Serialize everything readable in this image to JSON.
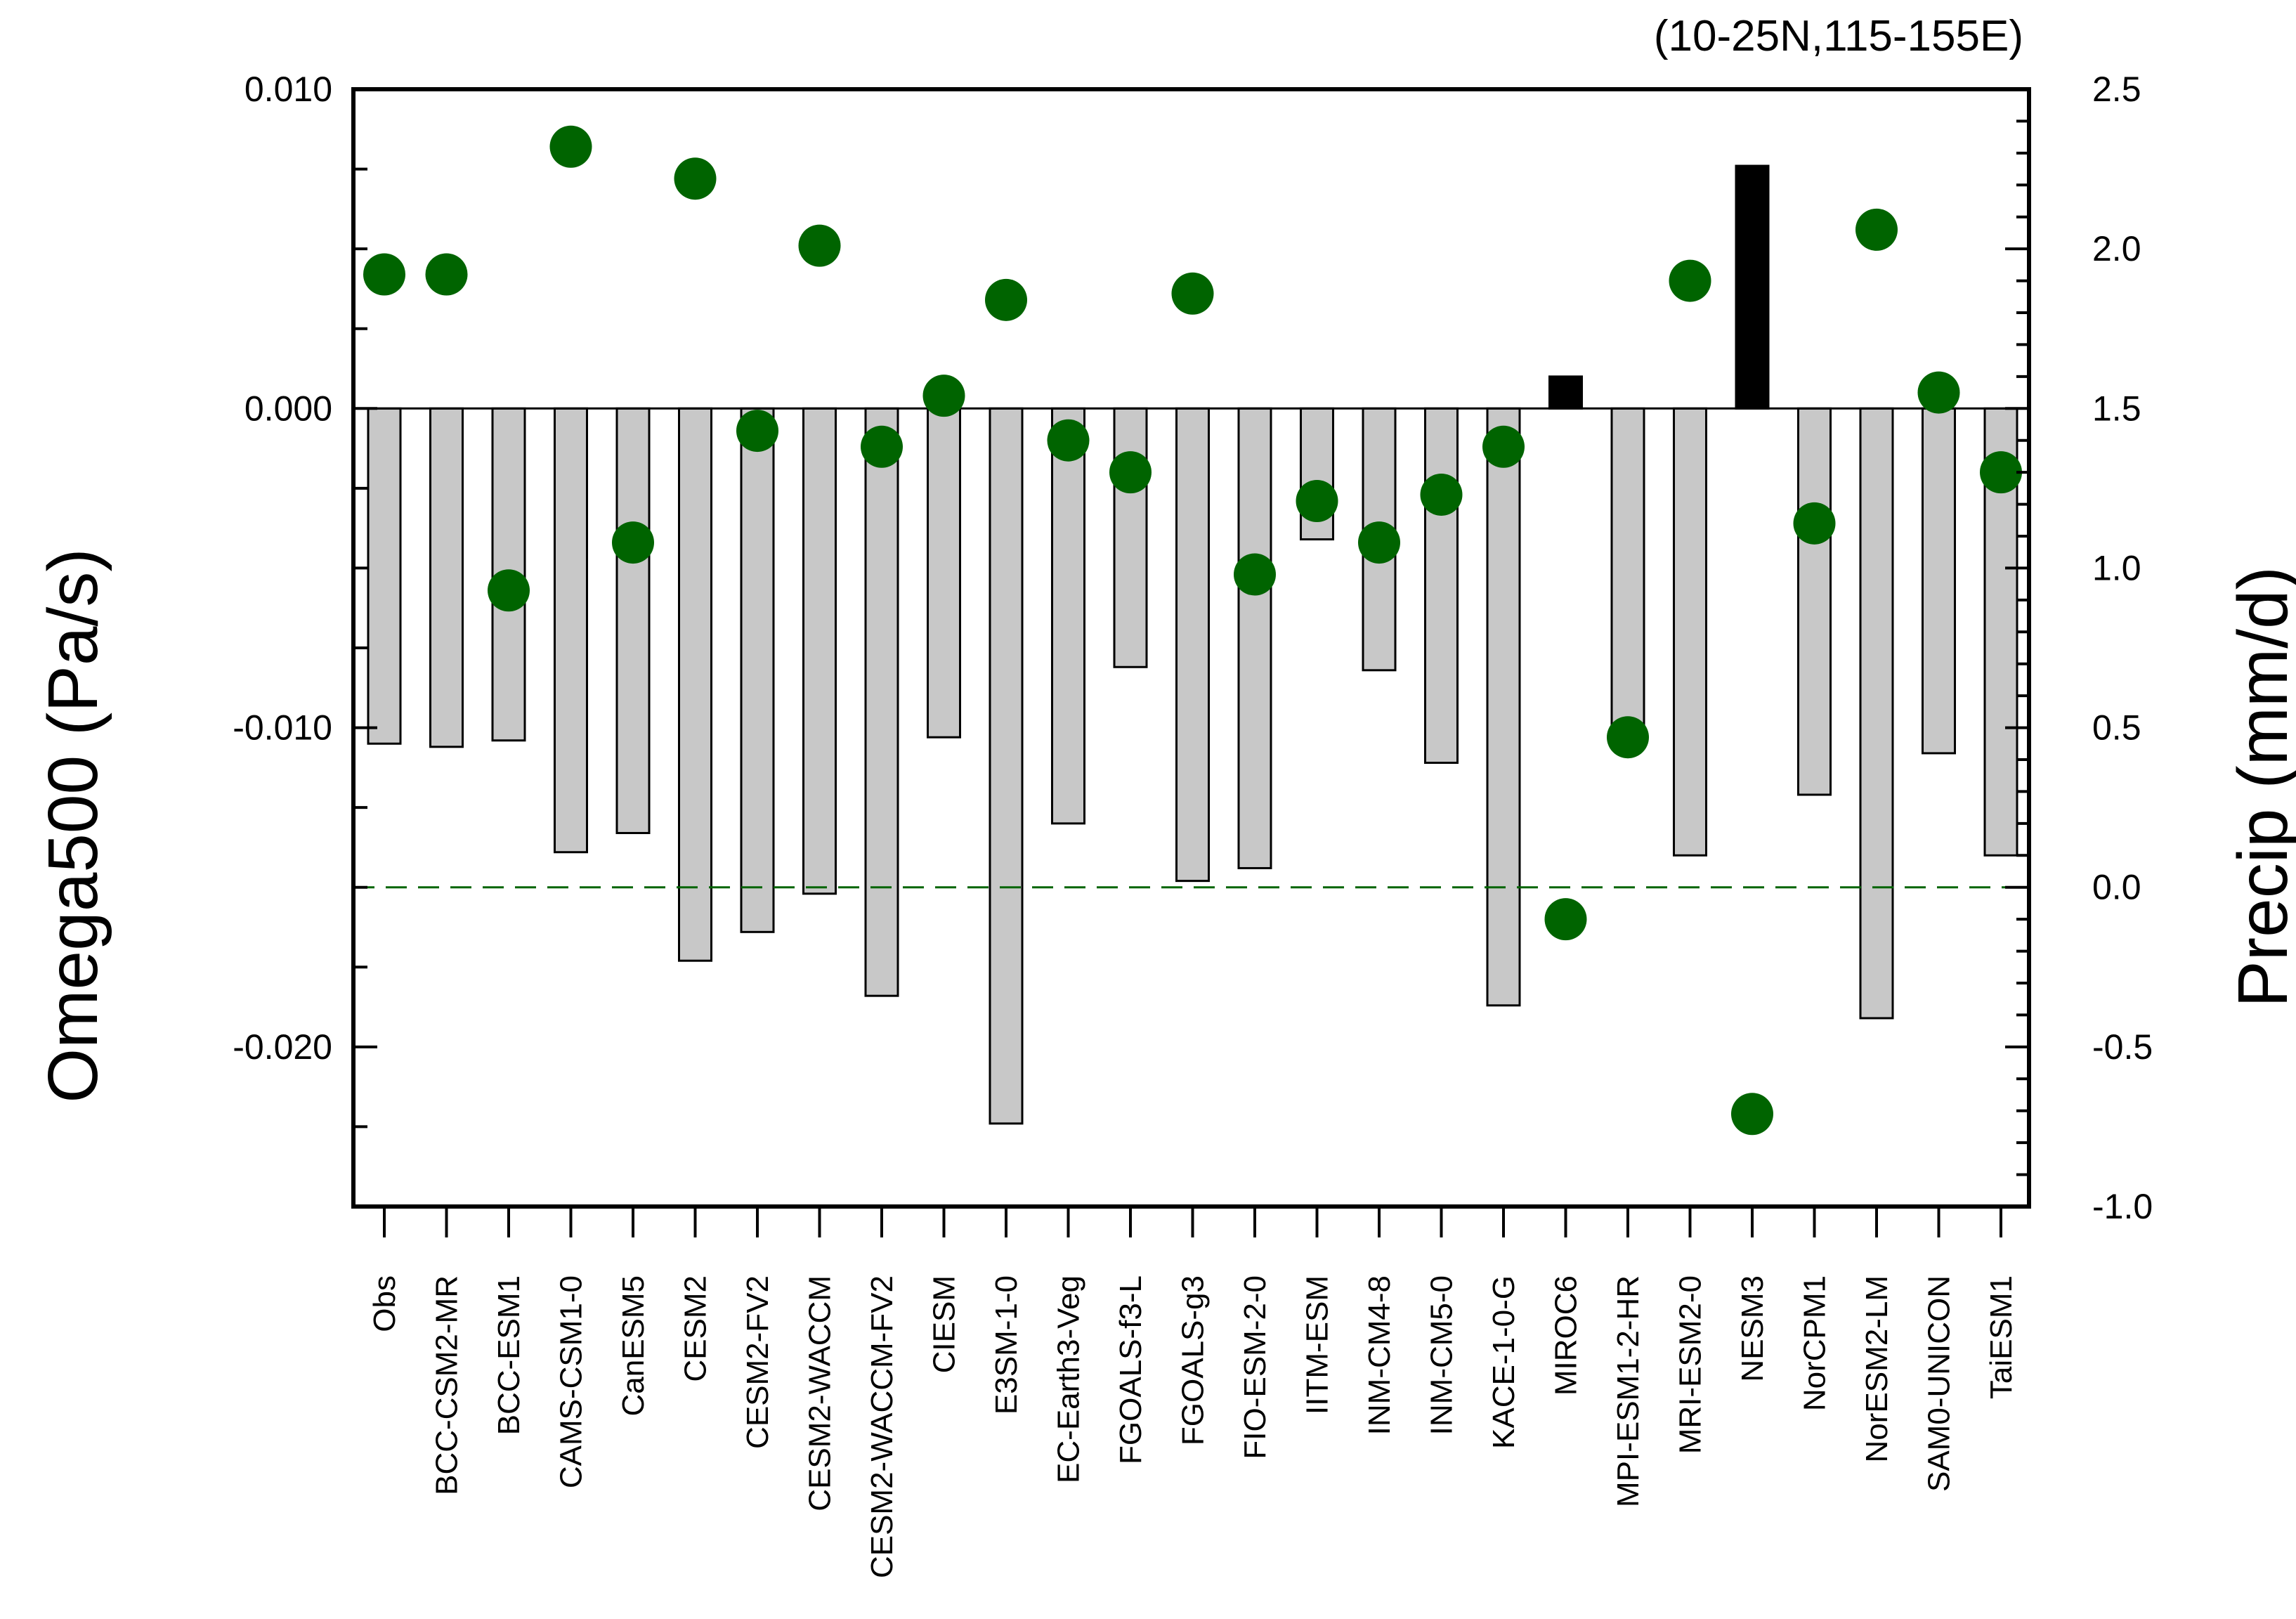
{
  "chart_data": {
    "type": "bar",
    "title": "(10-25N,115-155E)",
    "ylabel_left": "Omega500 (Pa/s)",
    "ylabel_right": "Precip (mm/d)",
    "ylim_left": [
      -0.025,
      0.01
    ],
    "ylim_right": [
      -1.0,
      2.5
    ],
    "yticks_left": [
      "0.010",
      "0.000",
      "-0.010",
      "-0.020"
    ],
    "yticks_left_values": [
      0.01,
      0.0,
      -0.01,
      -0.02
    ],
    "yticks_right": [
      "2.5",
      "2.0",
      "1.5",
      "1.0",
      "0.5",
      "0.0",
      "-0.5",
      "-1.0"
    ],
    "yticks_right_values": [
      2.5,
      2.0,
      1.5,
      1.0,
      0.5,
      0.0,
      -0.5,
      -1.0
    ],
    "categories": [
      "Obs",
      "BCC-CSM2-MR",
      "BCC-ESM1",
      "CAMS-CSM1-0",
      "CanESM5",
      "CESM2",
      "CESM2-FV2",
      "CESM2-WACCM",
      "CESM2-WACCM-FV2",
      "CIESM",
      "E3SM-1-0",
      "EC-Earth3-Veg",
      "FGOALS-f3-L",
      "FGOALS-g3",
      "FIO-ESM-2-0",
      "IITM-ESM",
      "INM-CM4-8",
      "INM-CM5-0",
      "KACE-1-0-G",
      "MIROC6",
      "MPI-ESM1-2-HR",
      "MRI-ESM2-0",
      "NESM3",
      "NorCPM1",
      "NorESM2-LM",
      "SAM0-UNICON",
      "TaiESM1"
    ],
    "series": [
      {
        "name": "Omega500",
        "type": "bar",
        "axis": "left",
        "negative_color": "#c8c8c8",
        "positive_color": "#000000",
        "values": [
          -0.0105,
          -0.0106,
          -0.0104,
          -0.0139,
          -0.0133,
          -0.0173,
          -0.0164,
          -0.0152,
          -0.0184,
          -0.0103,
          -0.0224,
          -0.013,
          -0.0081,
          -0.0148,
          -0.0144,
          -0.0041,
          -0.0082,
          -0.0111,
          -0.0187,
          0.001,
          -0.0102,
          -0.014,
          0.0076,
          -0.0121,
          -0.0191,
          -0.0108,
          -0.014
        ]
      },
      {
        "name": "Precip",
        "type": "scatter",
        "axis": "right",
        "color": "#006400",
        "values": [
          1.92,
          1.92,
          0.93,
          2.32,
          1.08,
          2.22,
          1.43,
          2.01,
          1.38,
          1.54,
          1.84,
          1.4,
          1.3,
          1.86,
          0.98,
          1.21,
          1.08,
          1.23,
          1.38,
          -0.1,
          0.47,
          1.9,
          -0.71,
          1.14,
          2.06,
          1.55,
          1.3
        ]
      }
    ],
    "reference_line": {
      "axis": "right",
      "value": 0.0,
      "style": "dashed",
      "color": "#006400"
    },
    "zero_line": {
      "axis": "left",
      "value": 0.0
    }
  }
}
